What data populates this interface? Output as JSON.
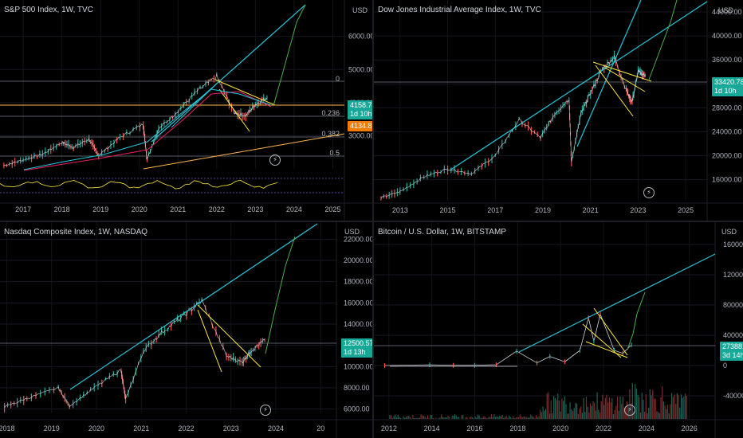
{
  "colors": {
    "trend": "#26c6da",
    "wedge": "#ffeb3b",
    "projection": "#4caf50",
    "fib": "#787b86",
    "hline": "#ffb74d",
    "up": "#26a69a",
    "down": "#ef5350",
    "indicator": "#7e57c2"
  },
  "chart_data": [
    {
      "type": "line",
      "title": "S&P 500 Index, 1W, TVC",
      "ylabel": "USD",
      "x_ticks": [
        "2017",
        "2018",
        "2019",
        "2020",
        "2021",
        "2022",
        "2023",
        "2024",
        "2025"
      ],
      "y_ticks": [
        "6000.00",
        "5000.00",
        "4000.00",
        "3000.00"
      ],
      "fib_levels": [
        "0",
        "0.236",
        "0.382",
        "0.5"
      ],
      "last_price": "4158.78",
      "countdown": "1d 10h",
      "hline_price": "4134.82",
      "series": [
        {
          "values": [
            [
              2016.5,
              2100
            ],
            [
              2017,
              2270
            ],
            [
              2017.5,
              2440
            ],
            [
              2018,
              2800
            ],
            [
              2018.3,
              2650
            ],
            [
              2018.7,
              2900
            ],
            [
              2018.95,
              2400
            ],
            [
              2019.5,
              2950
            ],
            [
              2020.1,
              3350
            ],
            [
              2020.2,
              2300
            ],
            [
              2020.5,
              3200
            ],
            [
              2021,
              3750
            ],
            [
              2021.5,
              4350
            ],
            [
              2022,
              4790
            ],
            [
              2022.45,
              3700
            ],
            [
              2022.75,
              3600
            ],
            [
              2023,
              3950
            ],
            [
              2023.3,
              4150
            ]
          ]
        }
      ]
    },
    {
      "type": "line",
      "title": "Dow Jones Industrial Average Index, 1W, TVC",
      "ylabel": "USD",
      "x_ticks": [
        "2013",
        "2015",
        "2017",
        "2019",
        "2021",
        "2023",
        "2025"
      ],
      "y_ticks": [
        "44000.00",
        "40000.00",
        "36000.00",
        "32000.00",
        "28000.00",
        "24000.00",
        "20000.00",
        "16000.00"
      ],
      "last_price": "33420.78",
      "countdown": "1d 10h",
      "series": [
        {
          "values": [
            [
              2012.2,
              13000
            ],
            [
              2013,
              14000
            ],
            [
              2014,
              16500
            ],
            [
              2015,
              17800
            ],
            [
              2016,
              17000
            ],
            [
              2017,
              20000
            ],
            [
              2018,
              26000
            ],
            [
              2018.9,
              23000
            ],
            [
              2019.5,
              27000
            ],
            [
              2020.1,
              29500
            ],
            [
              2020.2,
              19000
            ],
            [
              2020.6,
              27000
            ],
            [
              2021,
              30500
            ],
            [
              2021.5,
              34500
            ],
            [
              2022,
              36500
            ],
            [
              2022.5,
              31000
            ],
            [
              2022.75,
              29000
            ],
            [
              2023,
              34000
            ],
            [
              2023.3,
              33400
            ]
          ]
        }
      ]
    },
    {
      "type": "line",
      "title": "Nasdaq Composite Index, 1W, NASDAQ",
      "ylabel": "USD",
      "x_ticks": [
        "2018",
        "2019",
        "2020",
        "2021",
        "2022",
        "2023",
        "2024",
        "20"
      ],
      "y_ticks": [
        "22000.00",
        "20000.00",
        "18000.00",
        "16000.00",
        "14000.00",
        "12000.00",
        "10000.00",
        "8000.00",
        "6000.00"
      ],
      "last_price": "12500.57",
      "countdown": "1d 13h",
      "series": [
        {
          "values": [
            [
              2017.5,
              6200
            ],
            [
              2018,
              7000
            ],
            [
              2018.7,
              8000
            ],
            [
              2018.95,
              6300
            ],
            [
              2019.5,
              8000
            ],
            [
              2020.1,
              9700
            ],
            [
              2020.2,
              6900
            ],
            [
              2020.6,
              11500
            ],
            [
              2021,
              13200
            ],
            [
              2021.5,
              14800
            ],
            [
              2021.9,
              16200
            ],
            [
              2022.45,
              11000
            ],
            [
              2022.8,
              10400
            ],
            [
              2023,
              11500
            ],
            [
              2023.3,
              12500
            ]
          ]
        }
      ]
    },
    {
      "type": "line",
      "title": "Bitcoin / U.S. Dollar, 1W, BITSTAMP",
      "ylabel": "USD",
      "x_ticks": [
        "2012",
        "2014",
        "2016",
        "2018",
        "2020",
        "2022",
        "2024",
        "2026"
      ],
      "y_ticks": [
        "160000",
        "120000",
        "80000",
        "40000",
        "0",
        "-40000"
      ],
      "last_price": "27388",
      "countdown": "3d 14h",
      "series": [
        {
          "values": [
            [
              2011.8,
              5
            ],
            [
              2013.9,
              900
            ],
            [
              2015,
              300
            ],
            [
              2016,
              400
            ],
            [
              2017,
              1000
            ],
            [
              2017.95,
              19000
            ],
            [
              2018.9,
              3500
            ],
            [
              2019.5,
              12000
            ],
            [
              2020.2,
              5000
            ],
            [
              2020.9,
              20000
            ],
            [
              2021.3,
              63000
            ],
            [
              2021.55,
              32000
            ],
            [
              2021.85,
              68000
            ],
            [
              2022.5,
              20000
            ],
            [
              2022.9,
              16000
            ],
            [
              2023.3,
              27400
            ]
          ]
        }
      ]
    }
  ]
}
